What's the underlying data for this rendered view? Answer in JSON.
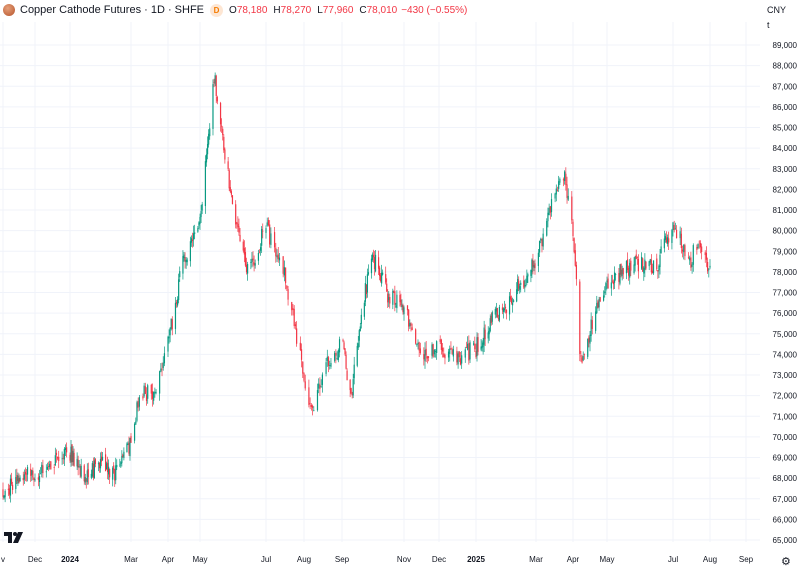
{
  "header": {
    "title": "Copper Cathode Futures · 1D · SHFE",
    "badge": "D",
    "open_key": "O",
    "open": "78,180",
    "high_key": "H",
    "high": "78,270",
    "low_key": "L",
    "low": "77,960",
    "close_key": "C",
    "close": "78,010",
    "change": "−430 (−0.55%)"
  },
  "price_scale": {
    "currency": "CNY",
    "unit": "t"
  },
  "colors": {
    "up": "#089981",
    "down": "#f23645",
    "grid": "#f0f3fa",
    "text": "#131722"
  },
  "chart_data": {
    "type": "candlestick",
    "title": "Copper Cathode Futures · 1D · SHFE",
    "xlabel": "",
    "ylabel": "",
    "ylim": [
      65000,
      89000
    ],
    "yticks": [
      65000,
      66000,
      67000,
      68000,
      69000,
      70000,
      71000,
      72000,
      73000,
      74000,
      75000,
      76000,
      77000,
      78000,
      79000,
      80000,
      81000,
      82000,
      83000,
      84000,
      85000,
      86000,
      87000,
      88000,
      89000
    ],
    "ytick_labels": [
      "65,000",
      "66,000",
      "67,000",
      "68,000",
      "69,000",
      "70,000",
      "71,000",
      "72,000",
      "73,000",
      "74,000",
      "75,000",
      "76,000",
      "77,000",
      "78,000",
      "79,000",
      "80,000",
      "81,000",
      "82,000",
      "83,000",
      "84,000",
      "85,000",
      "86,000",
      "87,000",
      "88,000",
      "89,000"
    ],
    "xtick_labels": [
      "v",
      "Dec",
      "2024",
      "Mar",
      "Apr",
      "May",
      "Jul",
      "Aug",
      "Sep",
      "Nov",
      "Dec",
      "2025",
      "Mar",
      "Apr",
      "May",
      "Jul",
      "Aug",
      "Sep"
    ],
    "xtick_dates": [
      "2023-11-01",
      "2023-12-01",
      "2024-01-01",
      "2024-03-01",
      "2024-04-01",
      "2024-05-01",
      "2024-07-01",
      "2024-08-01",
      "2024-09-01",
      "2024-11-01",
      "2024-12-01",
      "2025-01-01",
      "2025-03-01",
      "2025-04-01",
      "2025-05-01",
      "2025-07-01",
      "2025-08-01",
      "2025-09-01"
    ],
    "close_path": [
      [
        "2023-11-01",
        67400
      ],
      [
        "2023-11-15",
        67900
      ],
      [
        "2023-12-01",
        68300
      ],
      [
        "2023-12-15",
        68600
      ],
      [
        "2024-01-01",
        69300
      ],
      [
        "2024-01-15",
        68100
      ],
      [
        "2024-02-01",
        68700
      ],
      [
        "2024-02-15",
        68300
      ],
      [
        "2024-03-01",
        69800
      ],
      [
        "2024-03-08",
        72000
      ],
      [
        "2024-03-22",
        72200
      ],
      [
        "2024-04-01",
        74500
      ],
      [
        "2024-04-15",
        78500
      ],
      [
        "2024-05-01",
        80500
      ],
      [
        "2024-05-14",
        87500
      ],
      [
        "2024-05-22",
        84500
      ],
      [
        "2024-06-01",
        81000
      ],
      [
        "2024-06-15",
        78000
      ],
      [
        "2024-07-01",
        80200
      ],
      [
        "2024-07-15",
        78200
      ],
      [
        "2024-08-01",
        73000
      ],
      [
        "2024-08-07",
        71000
      ],
      [
        "2024-08-20",
        73500
      ],
      [
        "2024-09-01",
        74500
      ],
      [
        "2024-09-10",
        72000
      ],
      [
        "2024-09-20",
        76000
      ],
      [
        "2024-10-01",
        78800
      ],
      [
        "2024-10-15",
        77000
      ],
      [
        "2024-11-01",
        76200
      ],
      [
        "2024-11-15",
        74000
      ],
      [
        "2024-12-01",
        74300
      ],
      [
        "2024-12-15",
        73800
      ],
      [
        "2025-01-01",
        74300
      ],
      [
        "2025-01-15",
        75500
      ],
      [
        "2025-02-01",
        76500
      ],
      [
        "2025-02-15",
        77500
      ],
      [
        "2025-03-01",
        78500
      ],
      [
        "2025-03-15",
        81500
      ],
      [
        "2025-03-25",
        82500
      ],
      [
        "2025-04-01",
        80000
      ],
      [
        "2025-04-08",
        73500
      ],
      [
        "2025-04-15",
        75000
      ],
      [
        "2025-05-01",
        77500
      ],
      [
        "2025-05-15",
        78000
      ],
      [
        "2025-06-01",
        78500
      ],
      [
        "2025-06-15",
        78200
      ],
      [
        "2025-07-01",
        80200
      ],
      [
        "2025-07-08",
        79500
      ],
      [
        "2025-07-15",
        78300
      ],
      [
        "2025-07-22",
        79700
      ],
      [
        "2025-08-01",
        78010
      ]
    ]
  }
}
